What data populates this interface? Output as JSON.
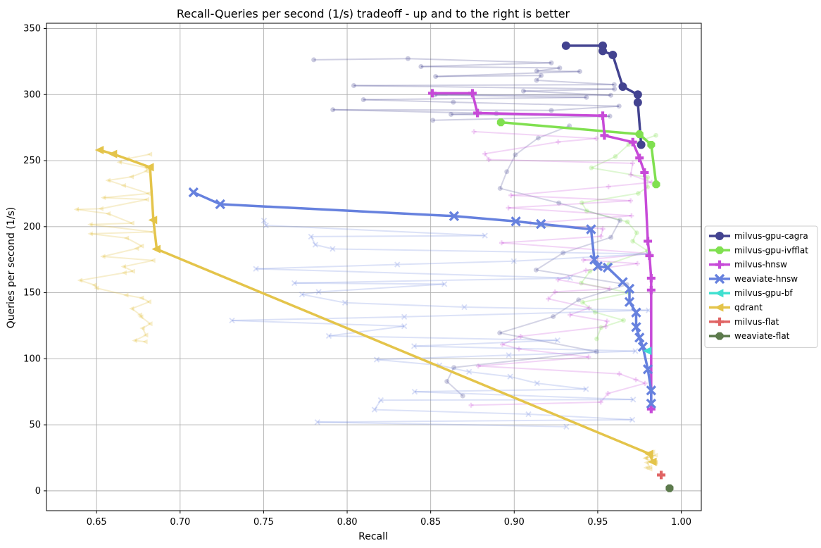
{
  "chart_data": {
    "type": "line",
    "title": "Recall-Queries per second (1/s) tradeoff - up and to the right is better",
    "xlabel": "Recall",
    "ylabel": "Queries per second (1/s)",
    "xlim": [
      0.62,
      1.012
    ],
    "ylim": [
      -15,
      354
    ],
    "xticks": [
      0.65,
      0.7,
      0.75,
      0.8,
      0.85,
      0.9,
      0.95,
      1.0
    ],
    "xtick_labels": [
      "0.65",
      "0.70",
      "0.75",
      "0.80",
      "0.85",
      "0.90",
      "0.95",
      "1.00"
    ],
    "yticks": [
      0,
      50,
      100,
      150,
      200,
      250,
      300,
      350
    ],
    "ytick_labels": [
      "0",
      "50",
      "100",
      "150",
      "200",
      "250",
      "300",
      "350"
    ],
    "grid": true,
    "legend_position": "center-right",
    "series": [
      {
        "name": "milvus-gpu-cagra",
        "color": "#434390",
        "marker": "circle",
        "points": [
          [
            0.931,
            337
          ],
          [
            0.953,
            337
          ],
          [
            0.953,
            333
          ],
          [
            0.959,
            330
          ],
          [
            0.965,
            306
          ],
          [
            0.974,
            300
          ],
          [
            0.974,
            294
          ],
          [
            0.976,
            262
          ]
        ]
      },
      {
        "name": "milvus-gpu-ivfflat",
        "color": "#80e050",
        "marker": "octagon",
        "points": [
          [
            0.892,
            279
          ],
          [
            0.975,
            270
          ],
          [
            0.982,
            262
          ],
          [
            0.985,
            232
          ]
        ]
      },
      {
        "name": "milvus-hnsw",
        "color": "#c74ad8",
        "marker": "plus",
        "points": [
          [
            0.851,
            301
          ],
          [
            0.875,
            301
          ],
          [
            0.878,
            286
          ],
          [
            0.953,
            284
          ],
          [
            0.954,
            269
          ],
          [
            0.971,
            264
          ],
          [
            0.975,
            252
          ],
          [
            0.978,
            241
          ],
          [
            0.98,
            189
          ],
          [
            0.981,
            178
          ],
          [
            0.982,
            161
          ],
          [
            0.982,
            152
          ],
          [
            0.982,
            62
          ]
        ]
      },
      {
        "name": "weaviate-hnsw",
        "color": "#6681de",
        "marker": "x",
        "points": [
          [
            0.708,
            226
          ],
          [
            0.724,
            217
          ],
          [
            0.864,
            208
          ],
          [
            0.901,
            204
          ],
          [
            0.916,
            202
          ],
          [
            0.946,
            198
          ],
          [
            0.948,
            175
          ],
          [
            0.95,
            170
          ],
          [
            0.956,
            169
          ],
          [
            0.965,
            158
          ],
          [
            0.969,
            153
          ],
          [
            0.969,
            143
          ],
          [
            0.973,
            135
          ],
          [
            0.973,
            124
          ],
          [
            0.975,
            116
          ],
          [
            0.977,
            109
          ],
          [
            0.98,
            92
          ],
          [
            0.982,
            76
          ],
          [
            0.982,
            66
          ]
        ]
      },
      {
        "name": "milvus-gpu-bf",
        "color": "#40e0d0",
        "marker": "triangle-left",
        "points": [
          [
            0.98,
            106
          ]
        ]
      },
      {
        "name": "qdrant",
        "color": "#e4c44a",
        "marker": "triangle-left",
        "points": [
          [
            0.652,
            258
          ],
          [
            0.66,
            255
          ],
          [
            0.682,
            245
          ],
          [
            0.684,
            205
          ],
          [
            0.686,
            183
          ],
          [
            0.981,
            28
          ],
          [
            0.983,
            22
          ]
        ]
      },
      {
        "name": "milvus-flat",
        "color": "#e06464",
        "marker": "plus",
        "points": [
          [
            0.988,
            12
          ]
        ]
      },
      {
        "name": "weaviate-flat",
        "color": "#5c7a4c",
        "marker": "octagon",
        "points": [
          [
            0.993,
            2
          ]
        ]
      }
    ]
  }
}
